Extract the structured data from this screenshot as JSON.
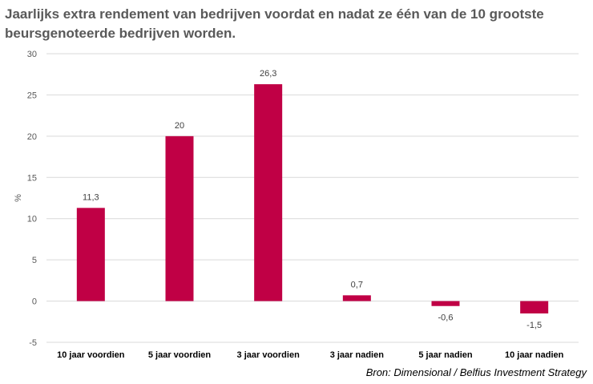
{
  "chart_data": {
    "type": "bar",
    "title": "Jaarlijks extra rendement van bedrijven voordat en nadat ze één van de 10 grootste beursgenoteerde bedrijven worden.",
    "ylabel": "%",
    "xlabel": "",
    "categories": [
      "10 jaar voordien",
      "5 jaar voordien",
      "3 jaar voordien",
      "3 jaar nadien",
      "5 jaar nadien",
      "10 jaar nadien"
    ],
    "values": [
      11.3,
      20,
      26.3,
      0.7,
      -0.6,
      -1.5
    ],
    "data_labels": [
      "11,3",
      "20",
      "26,3",
      "0,7",
      "-0,6",
      "-1,5"
    ],
    "ylim": [
      -5,
      30
    ],
    "yticks": [
      -5,
      0,
      5,
      10,
      15,
      20,
      25,
      30
    ],
    "grid": true,
    "legend": "none",
    "bar_color": "#C00045",
    "grid_color": "#D9D9D9"
  },
  "source": "Bron: Dimensional / Belfius Investment Strategy"
}
